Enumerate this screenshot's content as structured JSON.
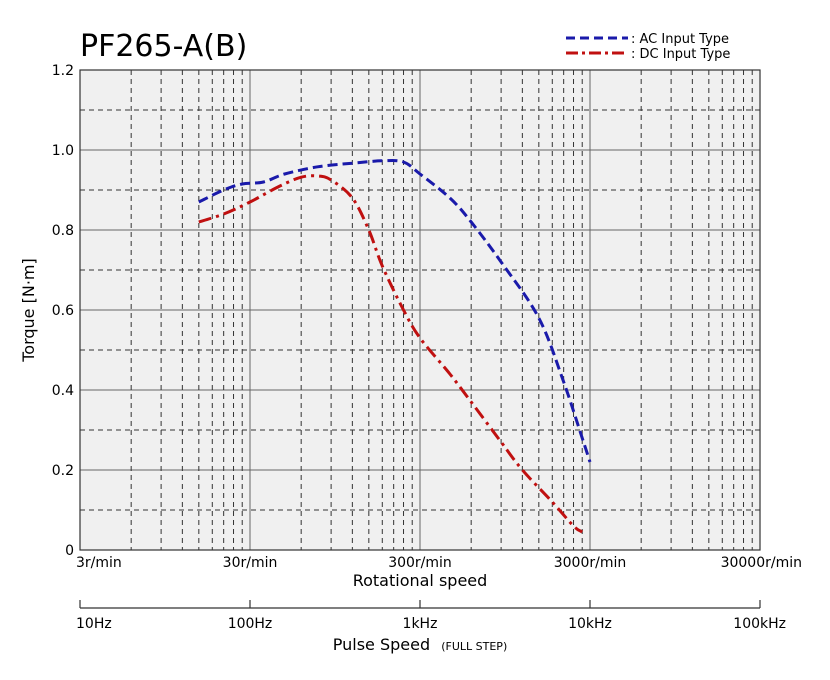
{
  "chart_data": {
    "type": "line",
    "title": "PF265-A(B)",
    "ylabel": "Torque [N·m]",
    "xlabel": "Rotational speed",
    "x2label": "Pulse Speed",
    "x2label_sub": "(FULL STEP)",
    "x_scale": "log",
    "grid": true,
    "legend_position": "top-right",
    "ylim": [
      0,
      1.2
    ],
    "yticks": [
      "0",
      "0.2",
      "0.4",
      "0.6",
      "0.8",
      "1.0",
      "1.2"
    ],
    "ytick_values": [
      0,
      0.2,
      0.4,
      0.6,
      0.8,
      1.0,
      1.2
    ],
    "x_range_hz": [
      10,
      100000
    ],
    "xticks_speed": [
      "3r/min",
      "30r/min",
      "300r/min",
      "3000r/min",
      "30000r/min"
    ],
    "xticks_pulse": [
      "10Hz",
      "100Hz",
      "1kHz",
      "10kHz",
      "100kHz"
    ],
    "xtick_values_hz": [
      10,
      100,
      1000,
      10000,
      100000
    ],
    "series": [
      {
        "name": ": AC Input Type",
        "color": "#1a1aaa",
        "style": "dashed",
        "points": [
          [
            50,
            0.87
          ],
          [
            70,
            0.9
          ],
          [
            90,
            0.915
          ],
          [
            120,
            0.92
          ],
          [
            160,
            0.94
          ],
          [
            250,
            0.958
          ],
          [
            400,
            0.967
          ],
          [
            600,
            0.973
          ],
          [
            800,
            0.97
          ],
          [
            1000,
            0.94
          ],
          [
            1500,
            0.88
          ],
          [
            2000,
            0.82
          ],
          [
            3000,
            0.72
          ],
          [
            5000,
            0.58
          ],
          [
            7000,
            0.42
          ],
          [
            9000,
            0.28
          ],
          [
            10000,
            0.22
          ]
        ]
      },
      {
        "name": ": DC Input Type",
        "color": "#c01010",
        "style": "dash-dot",
        "points": [
          [
            50,
            0.82
          ],
          [
            70,
            0.84
          ],
          [
            100,
            0.87
          ],
          [
            150,
            0.91
          ],
          [
            200,
            0.932
          ],
          [
            250,
            0.935
          ],
          [
            300,
            0.925
          ],
          [
            400,
            0.88
          ],
          [
            500,
            0.8
          ],
          [
            600,
            0.71
          ],
          [
            800,
            0.6
          ],
          [
            1000,
            0.53
          ],
          [
            1500,
            0.44
          ],
          [
            2000,
            0.37
          ],
          [
            3000,
            0.27
          ],
          [
            4000,
            0.2
          ],
          [
            6000,
            0.12
          ],
          [
            8000,
            0.06
          ],
          [
            9000,
            0.045
          ]
        ]
      }
    ]
  }
}
